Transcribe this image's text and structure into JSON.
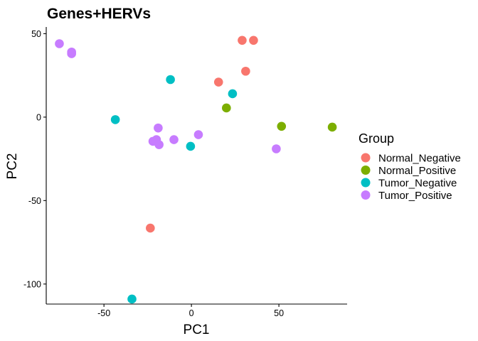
{
  "chart_data": {
    "type": "scatter",
    "title": "Genes+HERVs",
    "xlabel": "PC1",
    "ylabel": "PC2",
    "xlim": [
      -83,
      89
    ],
    "ylim": [
      -112,
      54
    ],
    "x_ticks": [
      -50,
      0,
      50
    ],
    "y_ticks": [
      50,
      0,
      -50,
      -100
    ],
    "grid": false,
    "legend_position": "right",
    "legend": {
      "title": "Group",
      "entries": [
        "Normal_Negative",
        "Normal_Positive",
        "Tumor_Negative",
        "Tumor_Positive"
      ]
    },
    "series": [
      {
        "name": "Normal_Negative",
        "color": "#F8766D",
        "points": [
          {
            "x": 29,
            "y": 46
          },
          {
            "x": 35.5,
            "y": 46
          },
          {
            "x": 31,
            "y": 27.5
          },
          {
            "x": 15.5,
            "y": 21
          },
          {
            "x": -23.5,
            "y": -66.5
          }
        ]
      },
      {
        "name": "Normal_Positive",
        "color": "#7CAE00",
        "points": [
          {
            "x": 20,
            "y": 5.5
          },
          {
            "x": 51.5,
            "y": -5.5
          },
          {
            "x": 80.5,
            "y": -6
          }
        ]
      },
      {
        "name": "Tumor_Negative",
        "color": "#00BFC4",
        "points": [
          {
            "x": -12,
            "y": 22.5
          },
          {
            "x": 23.5,
            "y": 14
          },
          {
            "x": -43.5,
            "y": -1.5
          },
          {
            "x": -0.5,
            "y": -17.5
          },
          {
            "x": -34,
            "y": -109
          }
        ]
      },
      {
        "name": "Tumor_Positive",
        "color": "#C77CFF",
        "points": [
          {
            "x": -75.5,
            "y": 44
          },
          {
            "x": -68.5,
            "y": 39
          },
          {
            "x": -68.5,
            "y": 38
          },
          {
            "x": -19,
            "y": -6.5
          },
          {
            "x": -22,
            "y": -14.5
          },
          {
            "x": -20,
            "y": -13.5
          },
          {
            "x": -18.5,
            "y": -16.5
          },
          {
            "x": -10,
            "y": -13.5
          },
          {
            "x": 4,
            "y": -10.5
          },
          {
            "x": 48.5,
            "y": -19
          }
        ]
      }
    ]
  }
}
